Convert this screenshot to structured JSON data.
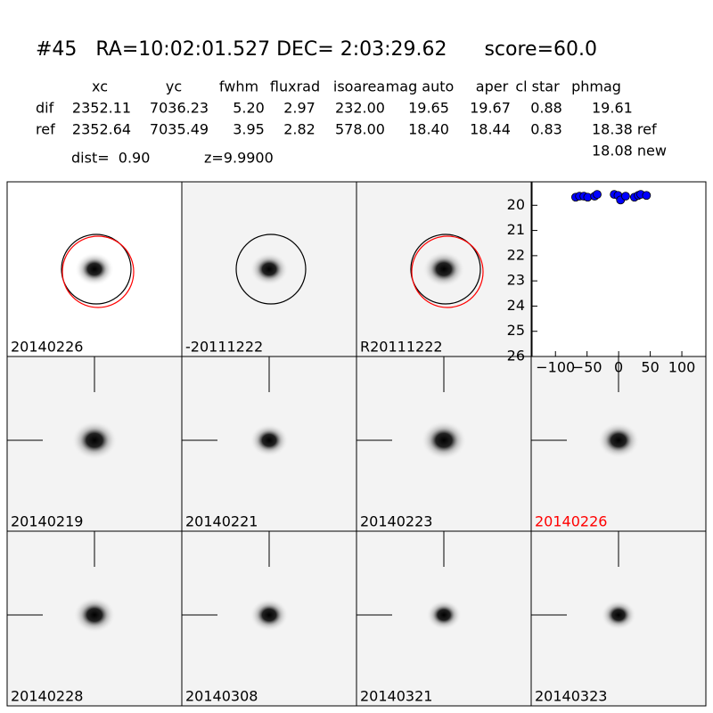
{
  "header": {
    "title": "#45   RA=10:02:01.527 DEC= 2:03:29.62      score=60.0",
    "dist": "dist=  0.90",
    "z": "z=9.9900"
  },
  "table": {
    "columns": [
      "xc",
      "yc",
      "fwhm",
      "fluxrad",
      "isoarea",
      "mag auto",
      "aper",
      "cl star",
      "phmag"
    ],
    "rows": [
      {
        "label": "dif",
        "values": [
          "2352.11",
          "7036.23",
          "5.20",
          "2.97",
          "232.00",
          "19.65",
          "19.67",
          "0.88",
          "19.61"
        ]
      },
      {
        "label": "ref",
        "values": [
          "2352.64",
          "7035.49",
          "3.95",
          "2.82",
          "578.00",
          "18.40",
          "18.44",
          "0.83",
          "18.38 ref"
        ]
      }
    ],
    "extra": "18.08 new"
  },
  "panels": [
    {
      "label": "20140226"
    },
    {
      "label": "-20111222"
    },
    {
      "label": "R20111222"
    },
    {
      "label": "20140219"
    },
    {
      "label": "20140221"
    },
    {
      "label": "20140223"
    },
    {
      "label": "20140226"
    },
    {
      "label": "20140228"
    },
    {
      "label": "20140308"
    },
    {
      "label": "20140321"
    },
    {
      "label": "20140323"
    }
  ],
  "chart_data": {
    "type": "scatter",
    "color": "#0000ff",
    "x": [
      -68,
      -62,
      -55,
      -49,
      -38,
      -34,
      -7,
      -1,
      3,
      11,
      25,
      31,
      35,
      44
    ],
    "values": [
      19.68,
      19.64,
      19.64,
      19.68,
      19.64,
      19.57,
      19.57,
      19.61,
      19.79,
      19.64,
      19.68,
      19.61,
      19.57,
      19.61
    ],
    "xlim": [
      -137,
      138
    ],
    "ylim": [
      19.07,
      26
    ],
    "y_inverted": true,
    "xticks": [
      {
        "value": -100,
        "label": "−100"
      },
      {
        "value": -50,
        "label": "−50"
      },
      0,
      50,
      100
    ],
    "yticks": [
      20,
      21,
      22,
      23,
      24,
      25,
      26
    ]
  }
}
